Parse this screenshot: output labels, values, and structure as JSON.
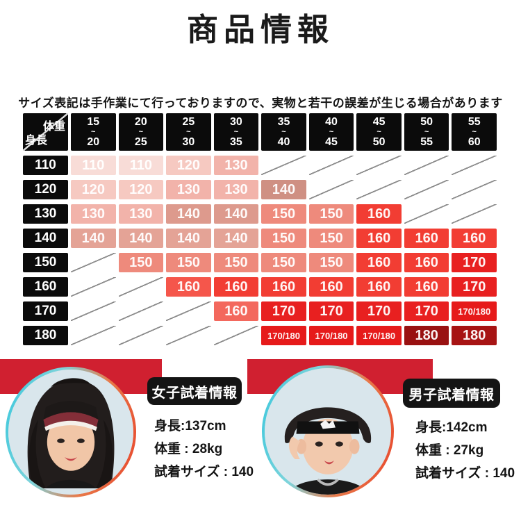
{
  "title": "商品情報",
  "notice": "サイズ表記は手作業にて行っておりますので、実物と若干の誤差が生じる場合があります",
  "colors": {
    "banner_red": "#d02030",
    "header_black": "#0b0b0b",
    "value_colors": {
      "110": "#f8dcd7",
      "120": "#f6c9c1",
      "130": "#f2b3aa",
      "140": "#dd9a8d",
      "150": "#ee8a7c",
      "160": "#f23d33",
      "170": "#e82020",
      "170/180": "#e61a1a",
      "180": "#9c1111"
    }
  },
  "size_chart": {
    "corner": {
      "top_right": "体重",
      "bottom_left": "身長"
    },
    "weight_ranges": [
      [
        "15",
        "20"
      ],
      [
        "20",
        "25"
      ],
      [
        "25",
        "30"
      ],
      [
        "30",
        "35"
      ],
      [
        "35",
        "40"
      ],
      [
        "40",
        "45"
      ],
      [
        "45",
        "50"
      ],
      [
        "50",
        "55"
      ],
      [
        "55",
        "60"
      ]
    ],
    "rows": [
      {
        "height": "110",
        "cells": [
          {
            "v": "110"
          },
          {
            "v": "110"
          },
          {
            "v": "120"
          },
          {
            "v": "130"
          },
          {},
          {},
          {},
          {},
          {}
        ]
      },
      {
        "height": "120",
        "cells": [
          {
            "v": "120"
          },
          {
            "v": "120"
          },
          {
            "v": "130"
          },
          {
            "v": "130"
          },
          {
            "v": "140",
            "c": "#cf9083"
          },
          {},
          {},
          {},
          {}
        ]
      },
      {
        "height": "130",
        "cells": [
          {
            "v": "130"
          },
          {
            "v": "130"
          },
          {
            "v": "140"
          },
          {
            "v": "140"
          },
          {
            "v": "150"
          },
          {
            "v": "150"
          },
          {
            "v": "160"
          },
          {},
          {}
        ]
      },
      {
        "height": "140",
        "cells": [
          {
            "v": "140",
            "c": "#e4a396"
          },
          {
            "v": "140",
            "c": "#e4a396"
          },
          {
            "v": "140",
            "c": "#e4a396"
          },
          {
            "v": "140",
            "c": "#e4a396"
          },
          {
            "v": "150"
          },
          {
            "v": "150"
          },
          {
            "v": "160"
          },
          {
            "v": "160"
          },
          {
            "v": "160"
          }
        ]
      },
      {
        "height": "150",
        "cells": [
          {},
          {
            "v": "150"
          },
          {
            "v": "150"
          },
          {
            "v": "150"
          },
          {
            "v": "150"
          },
          {
            "v": "150"
          },
          {
            "v": "160"
          },
          {
            "v": "160"
          },
          {
            "v": "170"
          }
        ]
      },
      {
        "height": "160",
        "cells": [
          {},
          {},
          {
            "v": "160",
            "c": "#f5564b"
          },
          {
            "v": "160"
          },
          {
            "v": "160"
          },
          {
            "v": "160"
          },
          {
            "v": "160"
          },
          {
            "v": "160"
          },
          {
            "v": "170"
          }
        ]
      },
      {
        "height": "170",
        "cells": [
          {},
          {},
          {},
          {
            "v": "160",
            "c": "#f3685d"
          },
          {
            "v": "170"
          },
          {
            "v": "170"
          },
          {
            "v": "170"
          },
          {
            "v": "170"
          },
          {
            "v": "170/180"
          }
        ]
      },
      {
        "height": "180",
        "cells": [
          {},
          {},
          {},
          {},
          {
            "v": "170/180"
          },
          {
            "v": "170/180"
          },
          {
            "v": "170/180"
          },
          {
            "v": "180",
            "c": "#991111"
          },
          {
            "v": "180",
            "c": "#a71414"
          }
        ]
      }
    ]
  },
  "fitting_cards": [
    {
      "badge": "女子試着情報",
      "height_label": "身長:137cm",
      "weight_label": "体重 : 28kg",
      "size_label": "試着サイズ : 140"
    },
    {
      "badge": "男子試着情報",
      "height_label": "身長:142cm",
      "weight_label": "体重 : 27kg",
      "size_label": "試着サイズ : 140"
    }
  ]
}
